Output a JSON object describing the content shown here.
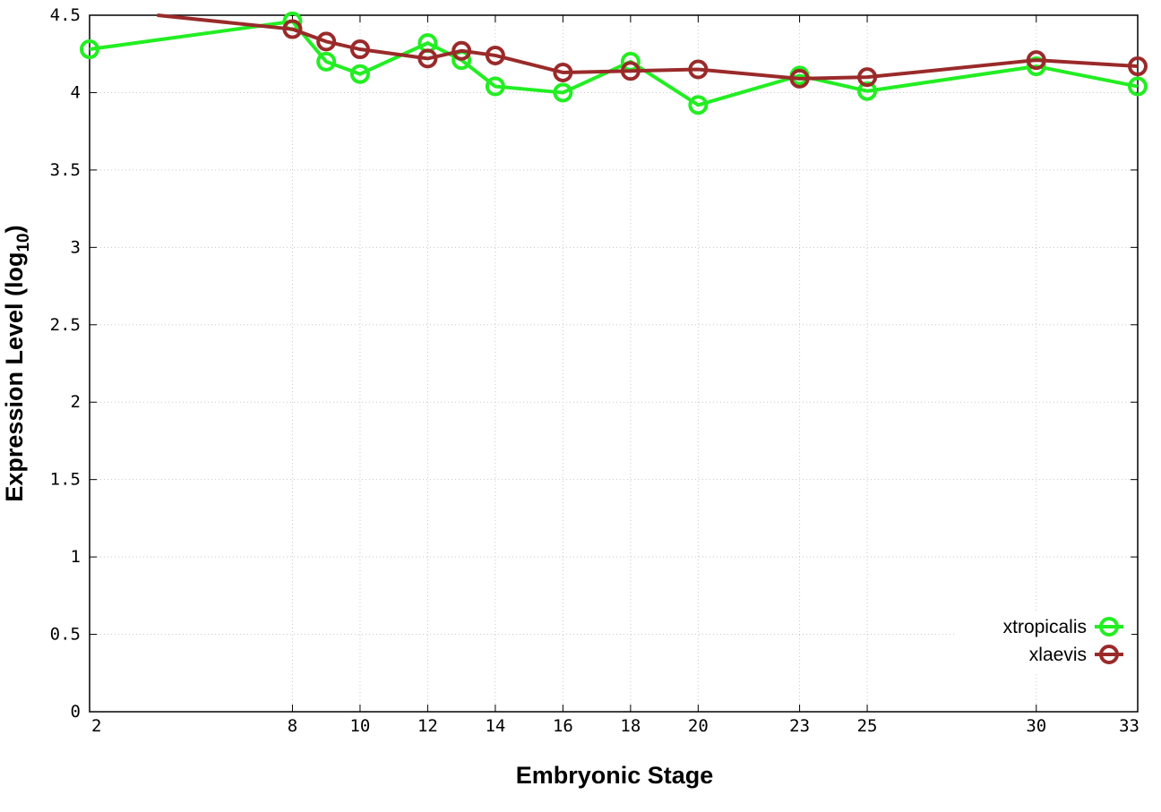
{
  "chart_data": {
    "type": "line",
    "xlabel": "Embryonic Stage",
    "ylabel": "Expression Level (log",
    "ylabel_sub": "10",
    "ylabel_close": ")",
    "x_ticks": [
      2,
      8,
      10,
      12,
      14,
      16,
      18,
      20,
      23,
      25,
      30,
      33
    ],
    "y_ticks": [
      0,
      0.5,
      1,
      1.5,
      2,
      2.5,
      3,
      3.5,
      4,
      4.5
    ],
    "y_tick_labels": [
      "0",
      "0.5",
      "1",
      "1.5",
      "2",
      "2.5",
      "3",
      "3.5",
      "4",
      "4.5"
    ],
    "xlim": [
      2,
      33
    ],
    "ylim": [
      0,
      4.5
    ],
    "grid": true,
    "legend_position": "bottom-right",
    "series": [
      {
        "name": "xtropicalis",
        "color": "#22ee22",
        "x": [
          2,
          8,
          9,
          10,
          12,
          13,
          14,
          16,
          18,
          20,
          23,
          25,
          30,
          33
        ],
        "y": [
          4.28,
          4.46,
          4.2,
          4.12,
          4.32,
          4.21,
          4.04,
          4.0,
          4.2,
          3.92,
          4.11,
          4.01,
          4.17,
          4.04
        ],
        "markers": true
      },
      {
        "name": "xlaevis",
        "color": "#9a2a2a",
        "x": [
          4,
          8,
          9,
          10,
          12,
          13,
          14,
          16,
          18,
          20,
          23,
          25,
          30,
          33
        ],
        "y": [
          4.5,
          4.41,
          4.33,
          4.28,
          4.22,
          4.27,
          4.24,
          4.13,
          4.14,
          4.15,
          4.09,
          4.1,
          4.21,
          4.17
        ],
        "marker_start_index": 1,
        "markers": true
      }
    ]
  }
}
